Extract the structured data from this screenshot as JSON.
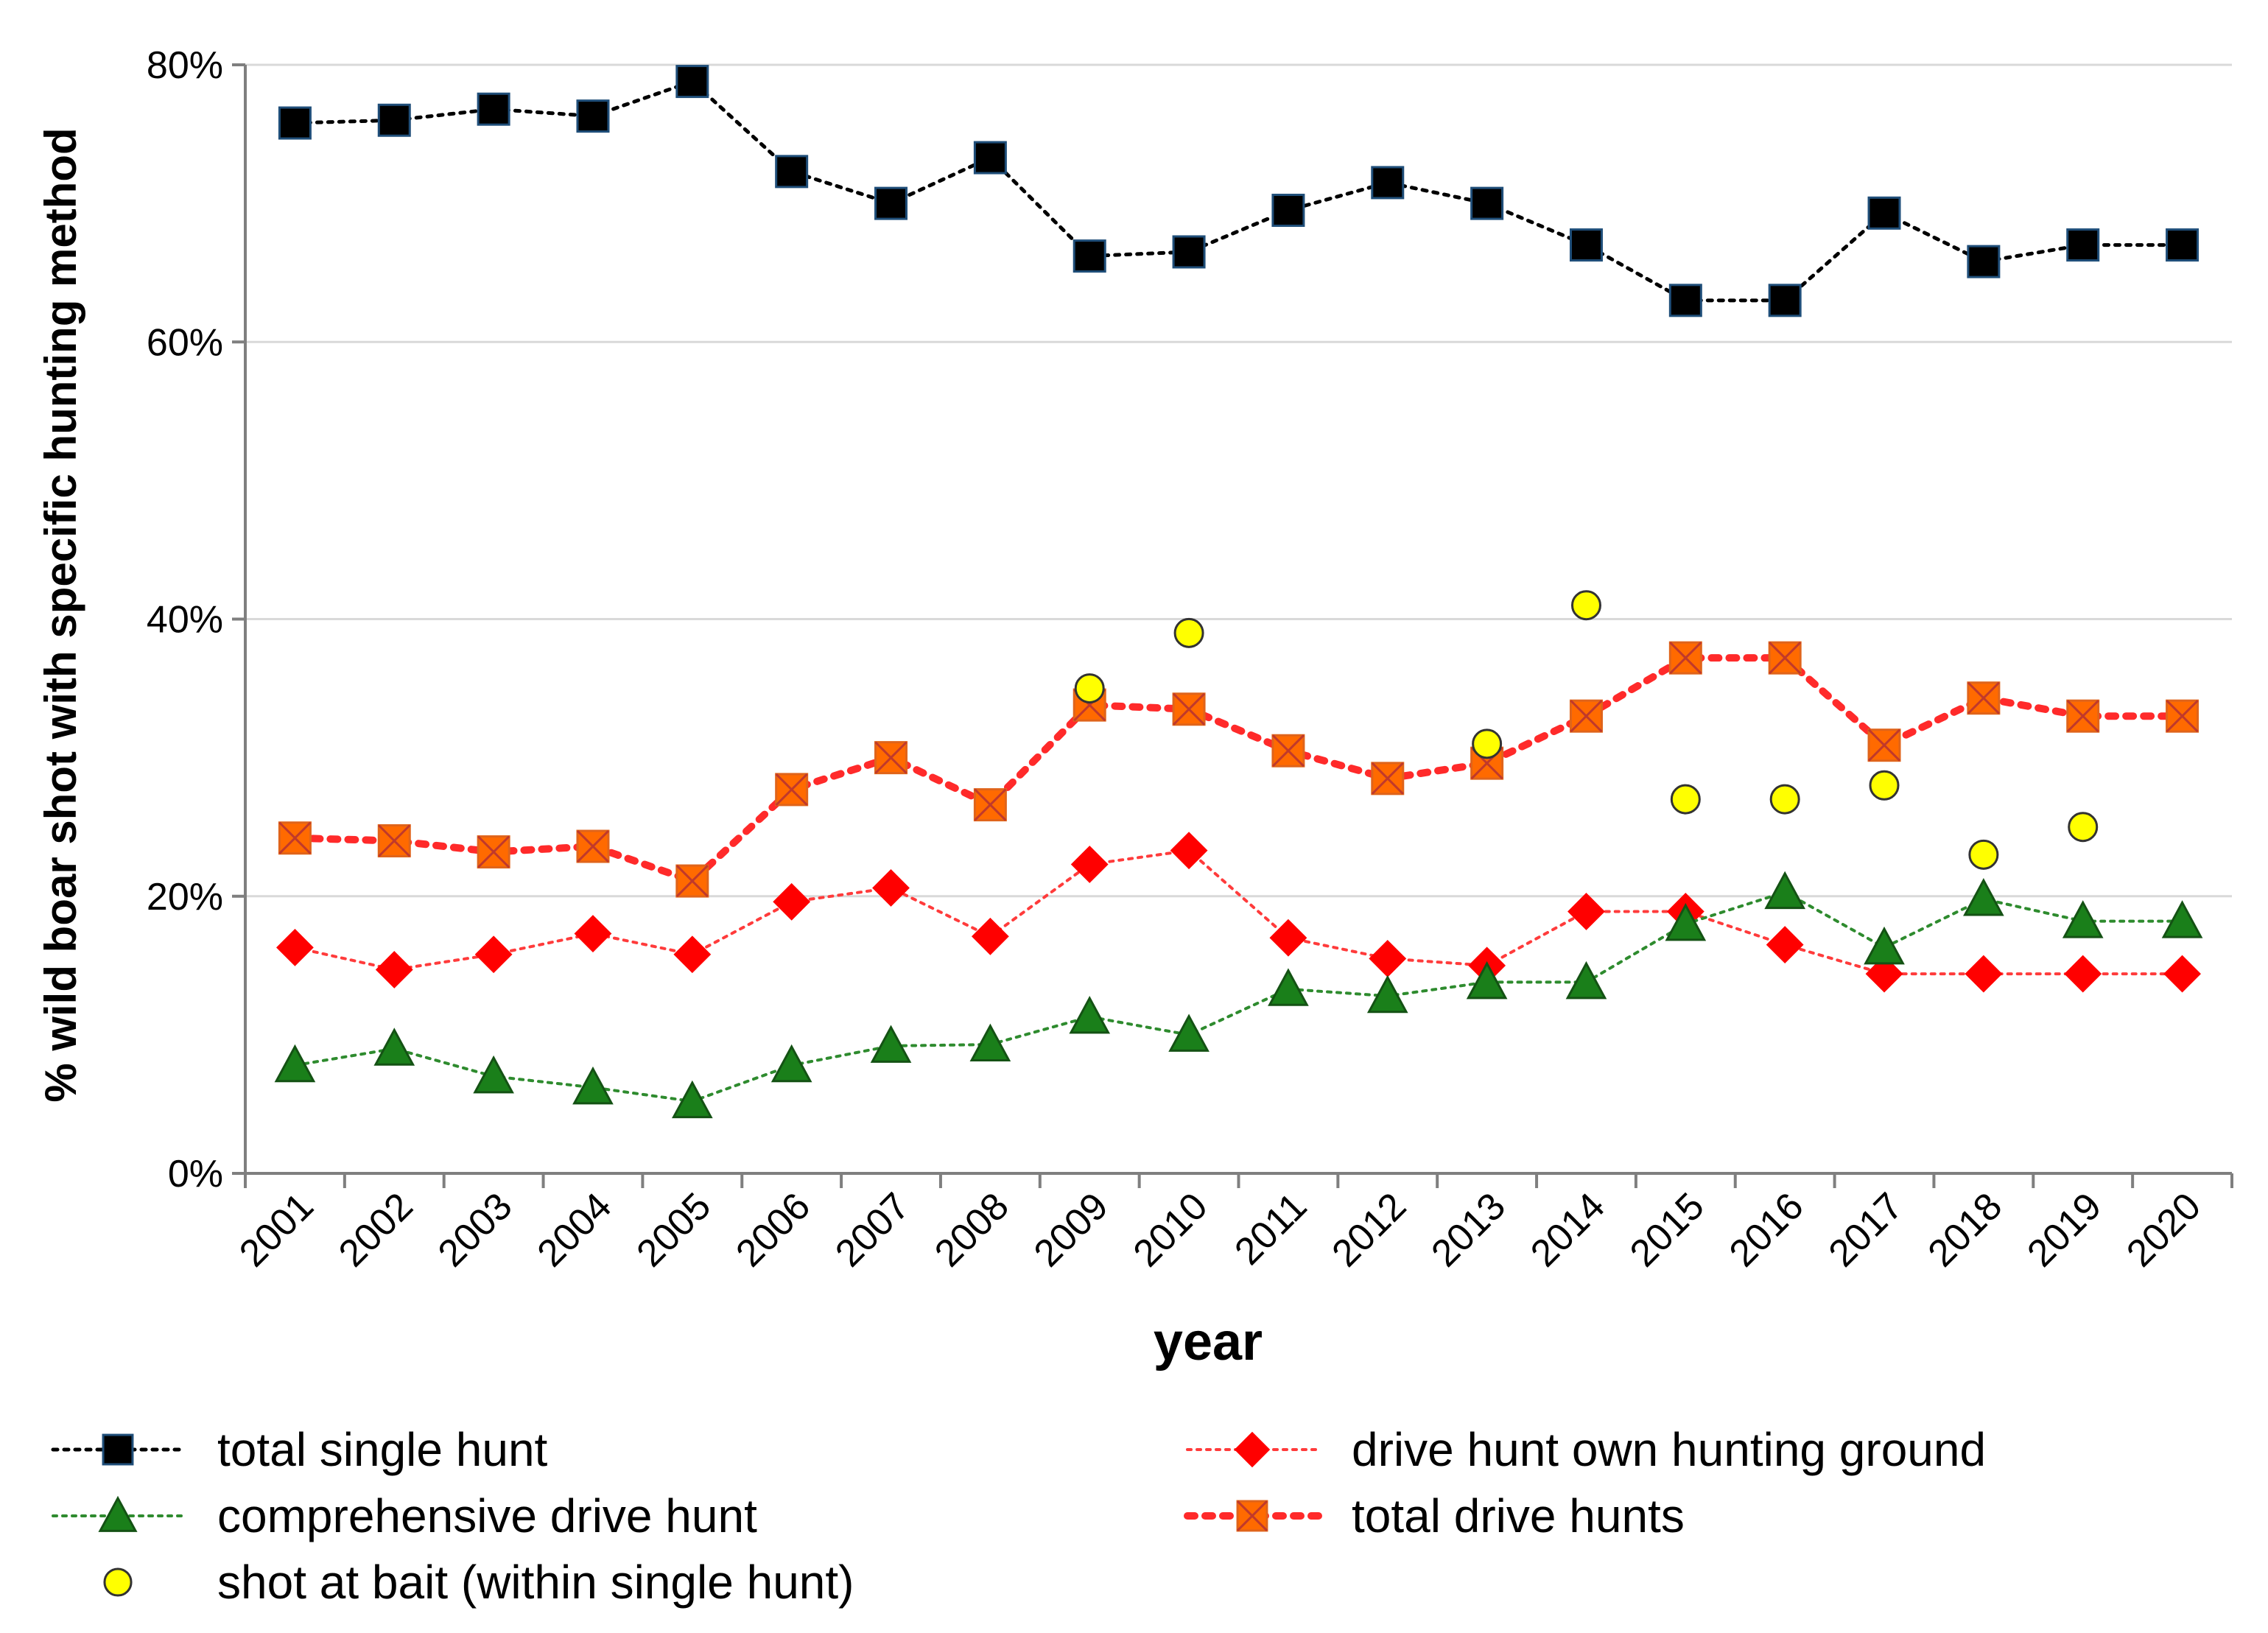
{
  "chart_data": {
    "type": "line",
    "title": "",
    "xlabel": "year",
    "ylabel": "% wild boar shot with specific hunting method",
    "ylim": [
      0,
      80
    ],
    "y_ticks": [
      "0%",
      "20%",
      "40%",
      "60%",
      "80%"
    ],
    "y_tick_values": [
      0,
      20,
      40,
      60,
      80
    ],
    "grid": true,
    "legend_position": "bottom",
    "categories": [
      "2001",
      "2002",
      "2003",
      "2004",
      "2005",
      "2006",
      "2007",
      "2008",
      "2009",
      "2010",
      "2011",
      "2012",
      "2013",
      "2014",
      "2015",
      "2016",
      "2017",
      "2018",
      "2019",
      "2020"
    ],
    "series": [
      {
        "name": "total single hunt",
        "marker": "square",
        "color": "#000000",
        "line_color": "#000000",
        "values": [
          75.8,
          76.0,
          76.8,
          76.3,
          78.8,
          72.3,
          70.0,
          73.3,
          66.2,
          66.5,
          69.5,
          71.5,
          70.0,
          67.0,
          63.0,
          63.0,
          69.3,
          65.8,
          67.0,
          67.0
        ]
      },
      {
        "name": "comprehensive drive hunt",
        "marker": "triangle",
        "color": "#1a7f1a",
        "line_color": "#2e8b2e",
        "values": [
          7.8,
          9.0,
          7.0,
          6.2,
          5.2,
          7.8,
          9.2,
          9.3,
          11.3,
          10.0,
          13.3,
          12.8,
          13.8,
          13.8,
          18.0,
          20.3,
          16.3,
          19.8,
          18.2,
          18.2
        ]
      },
      {
        "name": "shot at bait (within single hunt)",
        "marker": "circle",
        "color": "#ffff00",
        "line_color": "none",
        "values": [
          null,
          null,
          null,
          null,
          null,
          null,
          null,
          null,
          35.0,
          39.0,
          null,
          null,
          31.0,
          41.0,
          27.0,
          27.0,
          28.0,
          23.0,
          25.0,
          null
        ]
      },
      {
        "name": "drive hunt own hunting ground",
        "marker": "diamond",
        "color": "#ff0000",
        "line_color": "#ff3b3b",
        "values": [
          16.3,
          14.7,
          15.8,
          17.3,
          15.8,
          19.6,
          20.6,
          17.1,
          22.3,
          23.3,
          17.0,
          15.5,
          15.0,
          18.9,
          18.9,
          16.5,
          14.4,
          14.4,
          14.4,
          14.4
        ]
      },
      {
        "name": "total drive hunts",
        "marker": "square-x",
        "color": "#ff6a00",
        "line_color": "#ff2a2a",
        "values": [
          24.2,
          24.0,
          23.2,
          23.6,
          21.1,
          27.7,
          30.0,
          26.6,
          33.8,
          33.5,
          30.5,
          28.5,
          29.6,
          33.0,
          37.2,
          37.2,
          30.9,
          34.3,
          33.0,
          33.0
        ]
      }
    ]
  }
}
